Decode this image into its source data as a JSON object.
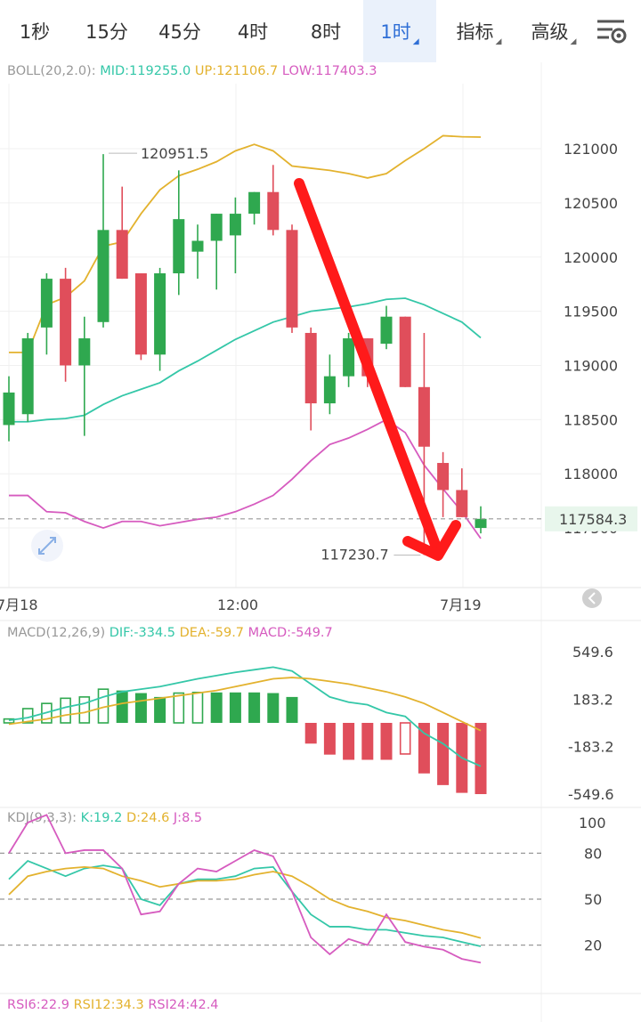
{
  "tabs": [
    {
      "label": "1秒",
      "dropdown": false,
      "active": false
    },
    {
      "label": "15分",
      "dropdown": false,
      "active": false
    },
    {
      "label": "45分",
      "dropdown": false,
      "active": false
    },
    {
      "label": "4时",
      "dropdown": false,
      "active": false
    },
    {
      "label": "8时",
      "dropdown": false,
      "active": false
    },
    {
      "label": "1时",
      "dropdown": true,
      "active": true
    },
    {
      "label": "指标",
      "dropdown": true,
      "active": false
    },
    {
      "label": "高级",
      "dropdown": true,
      "active": false
    }
  ],
  "colors": {
    "up": "#2fa84f",
    "down": "#e04e5b",
    "mid": "#34c7a8",
    "upper": "#e3b22e",
    "lower": "#d65bbf",
    "arrow": "#ff1a1a",
    "price_tag": "#2fa84f",
    "price_tag_bg": "#e8f6ec"
  },
  "boll_header": {
    "name": "BOLL(20,2.0):",
    "mid": "MID:119255.0",
    "up": "UP:121106.7",
    "low": "LOW:117403.3"
  },
  "macd_header": {
    "name": "MACD(12,26,9)",
    "dif": "DIF:-334.5",
    "dea": "DEA:-59.7",
    "macd": "MACD:-549.7"
  },
  "kdj_header": {
    "name": "KDJ(9,3,3):",
    "k": "K:19.2",
    "d": "D:24.6",
    "j": "J:8.5"
  },
  "rsi_header": {
    "rsi6": "RSI6:22.9",
    "rsi12": "RSI12:34.3",
    "rsi24": "RSI24:42.4"
  },
  "price_tag": "117584.3",
  "annotations": {
    "high_label": "120951.5",
    "low_label": "117230.7"
  },
  "chart_data": [
    {
      "type": "candlestick",
      "title": "BOLL(20,2.0)",
      "y_ticks": [
        121000,
        120500,
        120000,
        119500,
        119000,
        118500,
        118000,
        117500
      ],
      "ylim": [
        116950,
        121600
      ],
      "x_labels": [
        "7月18",
        "12:00",
        "7月19"
      ],
      "last_price": 117584.3,
      "candles": [
        {
          "o": 118450,
          "h": 118900,
          "l": 118300,
          "c": 118750
        },
        {
          "o": 118550,
          "h": 119300,
          "l": 118480,
          "c": 119250
        },
        {
          "o": 119350,
          "h": 119850,
          "l": 119100,
          "c": 119800
        },
        {
          "o": 119800,
          "h": 119900,
          "l": 118850,
          "c": 119000
        },
        {
          "o": 119000,
          "h": 119450,
          "l": 118350,
          "c": 119250
        },
        {
          "o": 119400,
          "h": 120950,
          "l": 119350,
          "c": 120250
        },
        {
          "o": 120250,
          "h": 120650,
          "l": 119800,
          "c": 119800
        },
        {
          "o": 119850,
          "h": 119850,
          "l": 119050,
          "c": 119100
        },
        {
          "o": 119100,
          "h": 119900,
          "l": 118950,
          "c": 119850
        },
        {
          "o": 119850,
          "h": 120800,
          "l": 119650,
          "c": 120350
        },
        {
          "o": 120050,
          "h": 120300,
          "l": 119800,
          "c": 120150
        },
        {
          "o": 120150,
          "h": 120400,
          "l": 119700,
          "c": 120400
        },
        {
          "o": 120200,
          "h": 120550,
          "l": 119850,
          "c": 120400
        },
        {
          "o": 120400,
          "h": 120600,
          "l": 120300,
          "c": 120600
        },
        {
          "o": 120600,
          "h": 120850,
          "l": 120200,
          "c": 120250
        },
        {
          "o": 120250,
          "h": 120300,
          "l": 119300,
          "c": 119350
        },
        {
          "o": 119300,
          "h": 119350,
          "l": 118400,
          "c": 118650
        },
        {
          "o": 118650,
          "h": 119100,
          "l": 118550,
          "c": 118900
        },
        {
          "o": 118900,
          "h": 119300,
          "l": 118800,
          "c": 119250
        },
        {
          "o": 119250,
          "h": 119250,
          "l": 118800,
          "c": 118900
        },
        {
          "o": 119200,
          "h": 119550,
          "l": 119150,
          "c": 119450
        },
        {
          "o": 119450,
          "h": 119450,
          "l": 118800,
          "c": 118800
        },
        {
          "o": 118800,
          "h": 119300,
          "l": 117250,
          "c": 118250
        },
        {
          "o": 118100,
          "h": 118200,
          "l": 117600,
          "c": 117850
        },
        {
          "o": 117850,
          "h": 118050,
          "l": 117600,
          "c": 117600
        },
        {
          "o": 117500,
          "h": 117700,
          "l": 117450,
          "c": 117584.3
        }
      ],
      "series": [
        {
          "name": "MID",
          "values": [
            118480,
            118480,
            118500,
            118510,
            118540,
            118640,
            118720,
            118780,
            118840,
            118950,
            119040,
            119140,
            119240,
            119320,
            119400,
            119450,
            119500,
            119520,
            119540,
            119570,
            119610,
            119620,
            119560,
            119480,
            119400,
            119255
          ]
        },
        {
          "name": "UP",
          "values": [
            119120,
            119120,
            119560,
            119630,
            119780,
            120100,
            120140,
            120400,
            120620,
            120750,
            120810,
            120880,
            120980,
            121040,
            120980,
            120840,
            120820,
            120800,
            120770,
            120730,
            120770,
            120890,
            121000,
            121120,
            121110,
            121107
          ]
        },
        {
          "name": "LOW",
          "values": [
            117800,
            117800,
            117650,
            117640,
            117560,
            117500,
            117560,
            117560,
            117520,
            117550,
            117580,
            117600,
            117650,
            117720,
            117800,
            117950,
            118120,
            118270,
            118330,
            118410,
            118500,
            118380,
            118080,
            117860,
            117650,
            117403
          ]
        }
      ]
    },
    {
      "type": "bar",
      "title": "MACD(12,26,9)",
      "y_ticks": [
        549.6,
        183.2,
        -183.2,
        -549.6
      ],
      "ylim": [
        -549.6,
        549.6
      ],
      "series": [
        {
          "name": "MACD",
          "values": [
            30,
            110,
            150,
            190,
            200,
            260,
            250,
            230,
            200,
            230,
            235,
            235,
            235,
            235,
            230,
            200,
            -160,
            -245,
            -285,
            -285,
            -285,
            -240,
            -390,
            -480,
            -540,
            -549.7
          ]
        },
        {
          "name": "DIF",
          "values": [
            20,
            40,
            80,
            120,
            150,
            200,
            240,
            260,
            280,
            310,
            340,
            365,
            390,
            410,
            430,
            400,
            300,
            200,
            160,
            140,
            80,
            50,
            -80,
            -160,
            -270,
            -334.5
          ]
        },
        {
          "name": "DEA",
          "values": [
            -10,
            10,
            30,
            60,
            80,
            120,
            150,
            170,
            190,
            210,
            230,
            250,
            280,
            310,
            340,
            350,
            340,
            320,
            300,
            270,
            240,
            200,
            150,
            80,
            10,
            -59.7
          ]
        }
      ]
    },
    {
      "type": "line",
      "title": "KDJ(9,3,3)",
      "y_ticks": [
        100,
        80,
        50,
        20
      ],
      "ylim": [
        0,
        100
      ],
      "series": [
        {
          "name": "K",
          "values": [
            63,
            75,
            70,
            65,
            70,
            72,
            70,
            50,
            46,
            60,
            63,
            63,
            65,
            70,
            71,
            55,
            40,
            32,
            32,
            30,
            30,
            28,
            26,
            25,
            22,
            19.2
          ]
        },
        {
          "name": "D",
          "values": [
            53,
            65,
            68,
            70,
            71,
            70,
            65,
            62,
            58,
            60,
            62,
            62,
            63,
            66,
            68,
            65,
            58,
            50,
            45,
            42,
            38,
            36,
            33,
            30,
            28,
            24.6
          ]
        },
        {
          "name": "J",
          "values": [
            80,
            100,
            105,
            80,
            82,
            82,
            70,
            40,
            42,
            60,
            70,
            68,
            75,
            82,
            78,
            55,
            25,
            14,
            24,
            20,
            40,
            22,
            19,
            17,
            11,
            8.5
          ]
        }
      ]
    }
  ]
}
